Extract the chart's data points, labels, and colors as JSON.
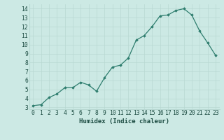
{
  "x": [
    0,
    1,
    2,
    3,
    4,
    5,
    6,
    7,
    8,
    9,
    10,
    11,
    12,
    13,
    14,
    15,
    16,
    17,
    18,
    19,
    20,
    21,
    22,
    23
  ],
  "y": [
    3.2,
    3.3,
    4.1,
    4.5,
    5.2,
    5.2,
    5.8,
    5.5,
    4.8,
    6.3,
    7.5,
    7.7,
    8.5,
    10.5,
    11.0,
    12.0,
    13.2,
    13.3,
    13.8,
    14.0,
    13.3,
    11.5,
    10.2,
    8.8
  ],
  "line_color": "#2e7d6e",
  "marker": "D",
  "marker_size": 1.8,
  "line_width": 0.9,
  "xlabel": "Humidex (Indice chaleur)",
  "xlim": [
    -0.5,
    23.5
  ],
  "ylim": [
    2.8,
    14.5
  ],
  "yticks": [
    3,
    4,
    5,
    6,
    7,
    8,
    9,
    10,
    11,
    12,
    13,
    14
  ],
  "xticks": [
    0,
    1,
    2,
    3,
    4,
    5,
    6,
    7,
    8,
    9,
    10,
    11,
    12,
    13,
    14,
    15,
    16,
    17,
    18,
    19,
    20,
    21,
    22,
    23
  ],
  "xtick_labels": [
    "0",
    "1",
    "2",
    "3",
    "4",
    "5",
    "6",
    "7",
    "8",
    "9",
    "10",
    "11",
    "12",
    "13",
    "14",
    "15",
    "16",
    "17",
    "18",
    "19",
    "20",
    "21",
    "22",
    "23"
  ],
  "bg_color": "#cce9e4",
  "grid_color": "#b8d8d2",
  "font_color": "#1a4a40",
  "xlabel_fontsize": 6.5,
  "tick_fontsize": 5.8
}
